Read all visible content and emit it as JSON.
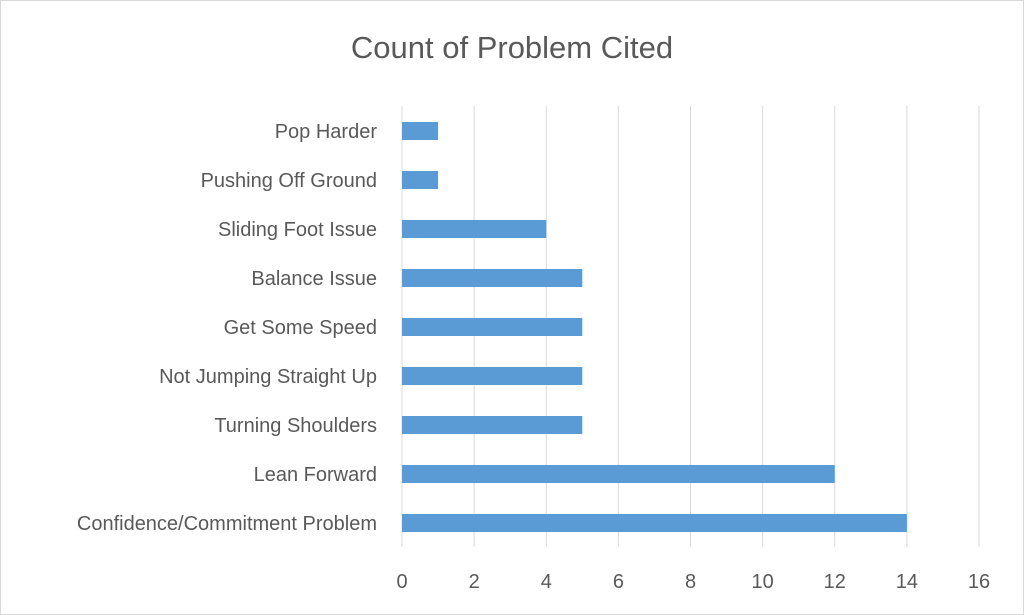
{
  "chart_data": {
    "type": "bar",
    "orientation": "horizontal",
    "title": "Count of Problem Cited",
    "xlabel": "",
    "ylabel": "",
    "categories": [
      "Pop Harder",
      "Pushing Off Ground",
      "Sliding Foot Issue",
      "Balance Issue",
      "Get Some Speed",
      "Not Jumping Straight Up",
      "Turning Shoulders",
      "Lean Forward",
      "Confidence/Commitment Problem"
    ],
    "values": [
      1,
      1,
      4,
      5,
      5,
      5,
      5,
      12,
      14
    ],
    "xlim": [
      0,
      16
    ],
    "xticks": [
      0,
      2,
      4,
      6,
      8,
      10,
      12,
      14,
      16
    ],
    "grid": "vertical",
    "legend": "none",
    "bar_color": "#5b9bd5",
    "grid_color": "#d9d9d9",
    "text_color": "#595959"
  }
}
